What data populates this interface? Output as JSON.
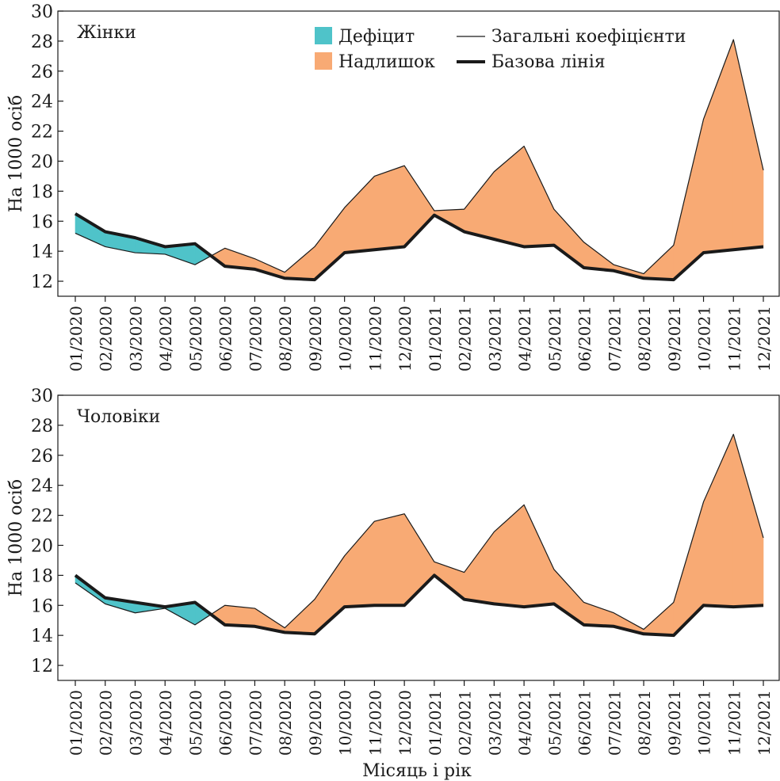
{
  "chart_data": [
    {
      "type": "area",
      "panel_label": "Жінки",
      "ylabel": "На 1000 осіб",
      "xlabel": "",
      "ylim": [
        11,
        30
      ],
      "yticks": [
        12,
        14,
        16,
        18,
        20,
        22,
        24,
        26,
        28,
        30
      ],
      "categories": [
        "01/2020",
        "02/2020",
        "03/2020",
        "04/2020",
        "05/2020",
        "06/2020",
        "07/2020",
        "08/2020",
        "09/2020",
        "10/2020",
        "11/2020",
        "12/2020",
        "01/2021",
        "02/2021",
        "03/2021",
        "04/2021",
        "05/2021",
        "06/2021",
        "07/2021",
        "08/2021",
        "09/2021",
        "10/2021",
        "11/2021",
        "12/2021"
      ],
      "series": [
        {
          "name": "Загальні коефіцієнти",
          "values": [
            15.2,
            14.3,
            13.9,
            13.8,
            13.1,
            14.2,
            13.5,
            12.6,
            14.3,
            16.9,
            19.0,
            19.7,
            16.7,
            16.8,
            19.3,
            21.0,
            16.8,
            14.6,
            13.1,
            12.5,
            14.4,
            22.8,
            28.1,
            19.4
          ]
        },
        {
          "name": "Базова лінія",
          "values": [
            16.5,
            15.3,
            14.9,
            14.3,
            14.5,
            13.0,
            12.8,
            12.2,
            12.1,
            13.9,
            14.1,
            14.3,
            16.4,
            15.3,
            14.8,
            14.3,
            14.4,
            12.9,
            12.7,
            12.2,
            12.1,
            13.9,
            14.1,
            14.3
          ]
        }
      ]
    },
    {
      "type": "area",
      "panel_label": "Чоловіки",
      "ylabel": "На 1000 осіб",
      "xlabel": "Місяць і рік",
      "ylim": [
        11,
        30
      ],
      "yticks": [
        12,
        14,
        16,
        18,
        20,
        22,
        24,
        26,
        28,
        30
      ],
      "categories": [
        "01/2020",
        "02/2020",
        "03/2020",
        "04/2020",
        "05/2020",
        "06/2020",
        "07/2020",
        "08/2020",
        "09/2020",
        "10/2020",
        "11/2020",
        "12/2020",
        "01/2021",
        "02/2021",
        "03/2021",
        "04/2021",
        "05/2021",
        "06/2021",
        "07/2021",
        "08/2021",
        "09/2021",
        "10/2021",
        "11/2021",
        "12/2021"
      ],
      "series": [
        {
          "name": "Загальні коефіцієнти",
          "values": [
            17.5,
            16.1,
            15.5,
            15.8,
            14.7,
            16.0,
            15.8,
            14.5,
            16.4,
            19.3,
            21.6,
            22.1,
            18.9,
            18.2,
            20.9,
            22.7,
            18.4,
            16.2,
            15.5,
            14.4,
            16.2,
            22.9,
            27.4,
            20.5
          ]
        },
        {
          "name": "Базова лінія",
          "values": [
            18.0,
            16.5,
            16.2,
            15.9,
            16.2,
            14.7,
            14.6,
            14.2,
            14.1,
            15.9,
            16.0,
            16.0,
            18.0,
            16.4,
            16.1,
            15.9,
            16.1,
            14.7,
            14.6,
            14.1,
            14.0,
            16.0,
            15.9,
            16.0
          ]
        }
      ]
    }
  ],
  "legend": {
    "placement": "top-center",
    "deficit_label": "Дефіцит",
    "surplus_label": "Надлишок",
    "observed_label": "Загальні коефіцієнти",
    "baseline_label": "Базова лінія"
  },
  "colors": {
    "deficit": "#4fc3c9",
    "surplus": "#f8aa74",
    "line": "#1a1a1a"
  }
}
